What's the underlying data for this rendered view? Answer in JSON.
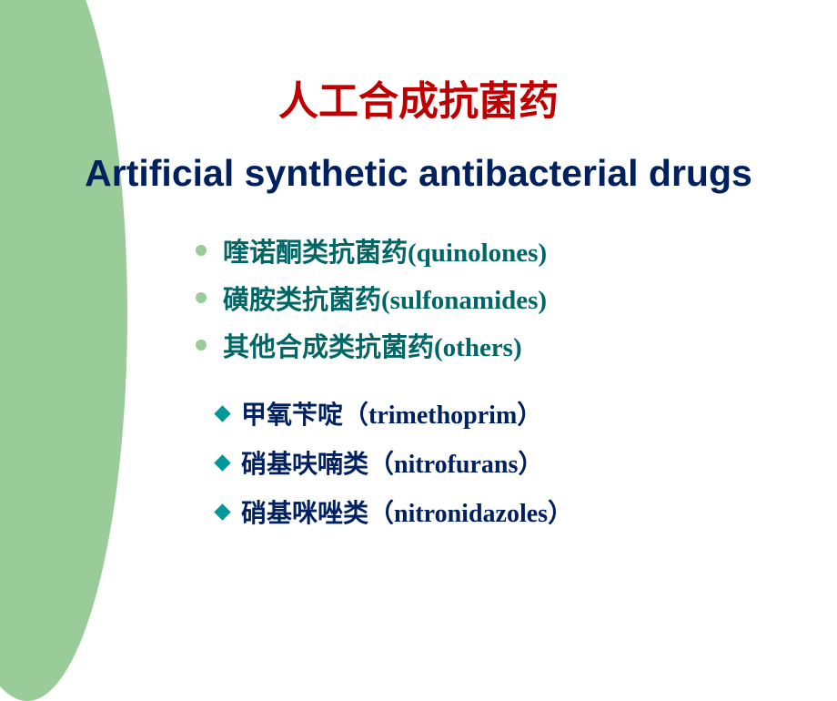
{
  "title_cn": {
    "text": "人工合成抗菌药",
    "color": "#c00000",
    "fontsize": 44
  },
  "title_en": {
    "text": "Artificial synthetic antibacterial drugs",
    "color": "#002060",
    "fontsize": 41
  },
  "bullet_main_color": "#99cc99",
  "bullet_sub_color": "#009999",
  "main_text_color": "#006666",
  "main_fontsize": 29,
  "sub_text_color": "#002060",
  "sub_fontsize": 28,
  "main_items": [
    "喹诺酮类抗菌药(quinolones)",
    "磺胺类抗菌药(sulfonamides)",
    "其他合成类抗菌药(others)"
  ],
  "sub_items": [
    "甲氧苄啶（trimethoprim）",
    "硝基呋喃类（nitrofurans）",
    "硝基咪唑类（nitronidazoles）"
  ]
}
